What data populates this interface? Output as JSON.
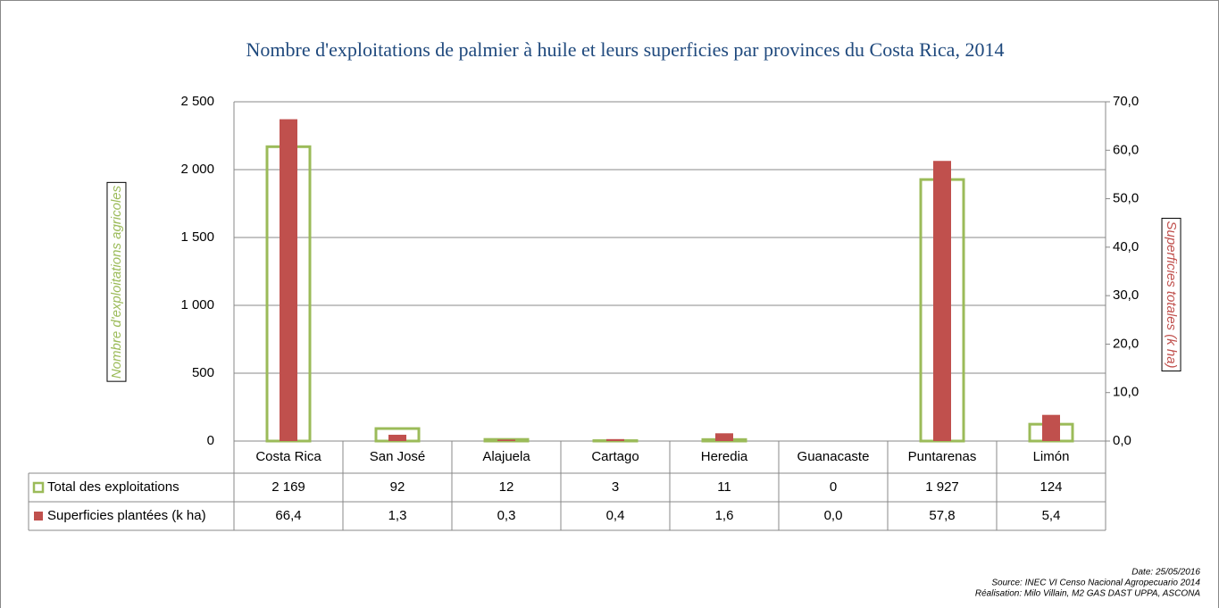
{
  "chart_data": {
    "type": "bar",
    "title": "Nombre d'exploitations de palmier à huile et leurs superficies par provinces du Costa Rica, 2014",
    "categories": [
      "Costa Rica",
      "San José",
      "Alajuela",
      "Cartago",
      "Heredia",
      "Guanacaste",
      "Puntarenas",
      "Limón"
    ],
    "series": [
      {
        "name": "Total des exploitations",
        "color": "#9bbb59",
        "values": [
          2169,
          92,
          12,
          3,
          11,
          0,
          1927,
          124
        ],
        "value_labels": [
          "2 169",
          "92",
          "12",
          "3",
          "11",
          "0",
          "1 927",
          "124"
        ]
      },
      {
        "name": "Superficies plantées (k ha)",
        "color": "#c0504d",
        "axis": "y2",
        "values": [
          66.4,
          1.3,
          0.3,
          0.4,
          1.6,
          0.0,
          57.8,
          5.4
        ],
        "value_labels": [
          "66,4",
          "1,3",
          "0,3",
          "0,4",
          "1,6",
          "0,0",
          "57,8",
          "5,4"
        ]
      }
    ],
    "ylabel": "Nombre d'exploitations agricoles",
    "y2label": "Superficies totales (k ha)",
    "ylim": [
      0,
      2500
    ],
    "yticks": [
      0,
      500,
      {
        "value": 1000,
        "label": "1 000"
      },
      {
        "value": 1500,
        "label": "1 500"
      },
      {
        "value": 2000,
        "label": "2 000"
      },
      {
        "value": 2500,
        "label": "2 500"
      }
    ],
    "y2lim": [
      0,
      70
    ],
    "y2ticks": [
      {
        "value": 0,
        "label": "0,0"
      },
      {
        "value": 10,
        "label": "10,0"
      },
      {
        "value": 20,
        "label": "20,0"
      },
      {
        "value": 30,
        "label": "30,0"
      },
      {
        "value": 40,
        "label": "40,0"
      },
      {
        "value": 50,
        "label": "50,0"
      },
      {
        "value": 60,
        "label": "60,0"
      },
      {
        "value": 70,
        "label": "70,0"
      }
    ],
    "grid": true,
    "notes": [
      "Date: 25/05/2016",
      "Source:  INEC VI Censo Nacional Agropecuario 2014",
      "Réalisation: Milo Villain, M2 GAS DAST UPPA, ASCONA"
    ]
  }
}
